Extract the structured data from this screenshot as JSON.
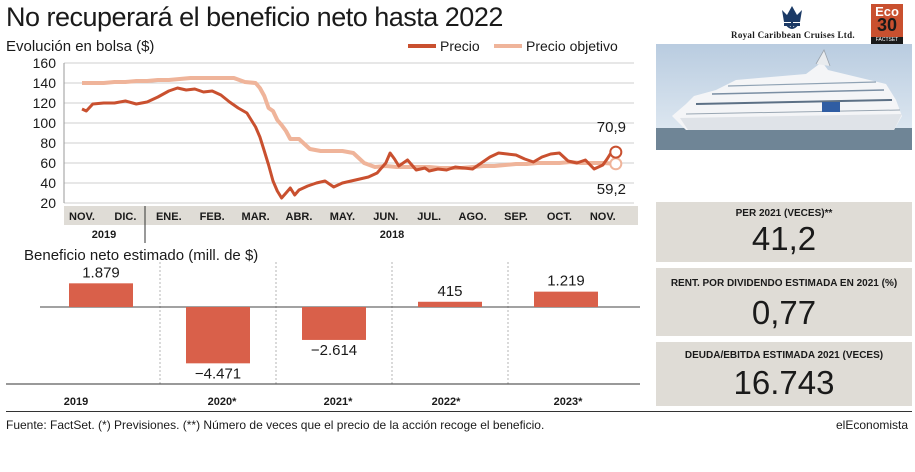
{
  "header": {
    "title": "No recuperará el beneficio neto hasta 2022"
  },
  "brand": {
    "company": "Royal Caribbean Cruises Ltd.",
    "badge_top": "Eco",
    "badge_number": "30",
    "badge_source": "FACTSET"
  },
  "colors": {
    "precio": "#c9502f",
    "precio_objetivo": "#efb49a",
    "bar": "#d9604a",
    "panel": "#dfdcd6"
  },
  "metrics": [
    {
      "label": "PER 2021 (VECES)**",
      "value": "41,2"
    },
    {
      "label": "RENT. POR DIVIDENDO ESTIMADA EN 2021 (%)",
      "value": "0,77"
    },
    {
      "label": "DEUDA/EBITDA ESTIMADA 2021 (VECES)",
      "value": "16.743"
    }
  ],
  "footer": {
    "source": "Fuente: FactSet. (*) Previsiones. (**) Número de veces que el precio de la acción recoge el beneficio.",
    "brand": "elEconomista"
  },
  "chart_data": [
    {
      "type": "line",
      "title": "Evolución en bolsa ($)",
      "ylim": [
        20,
        160
      ],
      "yticks": [
        20,
        40,
        60,
        80,
        100,
        120,
        140,
        160
      ],
      "x_month_labels": [
        "NOV.",
        "DIC.",
        "ENE.",
        "FEB.",
        "MAR.",
        "ABR.",
        "MAY.",
        "JUN.",
        "JUL.",
        "AGO.",
        "SEP.",
        "OCT.",
        "NOV."
      ],
      "x_year_labels": [
        "2019",
        "2018"
      ],
      "grid": true,
      "legend_position": "top-right",
      "end_labels": [
        "70,9",
        "59,2"
      ],
      "series": [
        {
          "name": "Precio",
          "x": [
            0,
            0.1,
            0.25,
            0.5,
            0.75,
            1,
            1.25,
            1.5,
            1.75,
            2,
            2.2,
            2.4,
            2.6,
            2.8,
            3,
            3.2,
            3.4,
            3.6,
            3.8,
            4,
            4.1,
            4.2,
            4.3,
            4.4,
            4.5,
            4.6,
            4.7,
            4.8,
            4.9,
            5,
            5.2,
            5.4,
            5.6,
            5.8,
            6,
            6.2,
            6.4,
            6.6,
            6.8,
            7,
            7.1,
            7.2,
            7.3,
            7.4,
            7.5,
            7.7,
            7.9,
            8,
            8.2,
            8.4,
            8.6,
            8.8,
            9,
            9.2,
            9.4,
            9.6,
            9.8,
            10,
            10.2,
            10.4,
            10.6,
            10.8,
            11,
            11.2,
            11.4,
            11.6,
            11.8,
            12,
            12.1,
            12.2,
            12.3
          ],
          "y": [
            114,
            112,
            119,
            120,
            120,
            122,
            119,
            121,
            126,
            132,
            135,
            133,
            134,
            131,
            132,
            128,
            121,
            115,
            110,
            96,
            86,
            72,
            58,
            42,
            32,
            25,
            30,
            35,
            28,
            33,
            37,
            40,
            42,
            36,
            40,
            42,
            44,
            46,
            50,
            60,
            70,
            64,
            57,
            60,
            63,
            53,
            55,
            52,
            54,
            53,
            56,
            55,
            54,
            60,
            66,
            70,
            69,
            68,
            64,
            61,
            66,
            69,
            70,
            62,
            60,
            63,
            54,
            58,
            64,
            71,
            70.9
          ]
        },
        {
          "name": "Precio objetivo",
          "x": [
            0,
            0.25,
            0.5,
            0.75,
            1,
            1.25,
            1.5,
            1.75,
            2,
            2.25,
            2.5,
            2.75,
            3,
            3.25,
            3.5,
            3.75,
            4,
            4.1,
            4.2,
            4.3,
            4.4,
            4.5,
            4.6,
            4.7,
            4.8,
            4.9,
            5,
            5.25,
            5.5,
            5.75,
            6,
            6.25,
            6.5,
            6.75,
            7,
            7.25,
            7.5,
            7.75,
            8,
            8.25,
            8.5,
            8.75,
            9,
            9.25,
            9.5,
            9.75,
            10,
            10.25,
            10.5,
            10.75,
            11,
            11.25,
            11.5,
            11.75,
            12,
            12.3
          ],
          "y": [
            140,
            140,
            140,
            141,
            141,
            142,
            142,
            143,
            143,
            144,
            145,
            145,
            145,
            145,
            145,
            141,
            140,
            135,
            127,
            115,
            112,
            103,
            98,
            92,
            84,
            84,
            84,
            74,
            72,
            72,
            72,
            70,
            60,
            56,
            57,
            56,
            56,
            56,
            56,
            55,
            55,
            55,
            56,
            57,
            57,
            58,
            59,
            59,
            60,
            60,
            60,
            61,
            60,
            60,
            60,
            59.2
          ]
        }
      ]
    },
    {
      "type": "bar",
      "title": "Beneficio neto estimado (mill. de $)",
      "categories": [
        "2019",
        "2020*",
        "2021*",
        "2022*",
        "2023*"
      ],
      "values": [
        1879,
        -4471,
        -2614,
        415,
        1219
      ],
      "value_labels": [
        "1.879",
        "−4.471",
        "−2.614",
        "415",
        "1.219"
      ],
      "grid": false
    }
  ]
}
